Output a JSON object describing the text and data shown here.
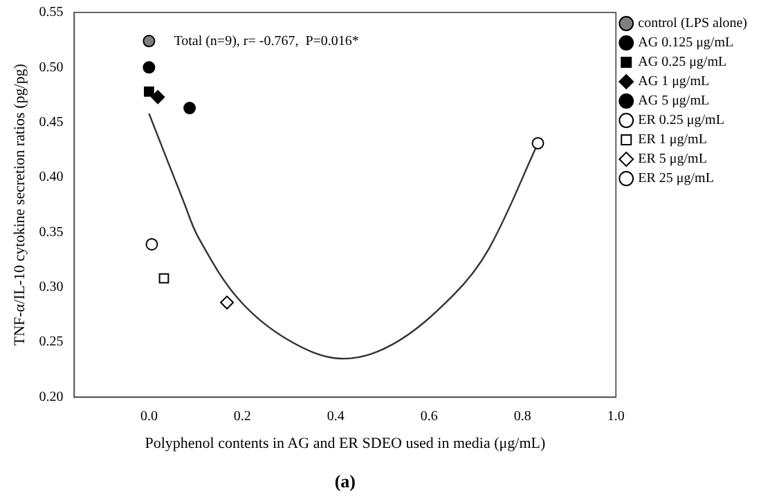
{
  "chart_data": {
    "type": "scatter",
    "xlabel": "Polyphenol contents in AG and ER SDEO used in media (μg/mL)",
    "ylabel": "TNF-α/IL-10 cytokine secretion ratios (pg/pg)",
    "annotations": [
      "Total (n=9), r= -0.767,  P=0.016*",
      "(a)"
    ],
    "xlim": [
      -0.16,
      1.0
    ],
    "xticks": [
      {
        "value": 0,
        "label": "0.0"
      },
      {
        "value": 0.2,
        "label": "0.2"
      },
      {
        "value": 0.4,
        "label": "0.4"
      },
      {
        "value": 0.6,
        "label": "0.6"
      },
      {
        "value": 0.8,
        "label": "0.8"
      },
      {
        "value": 1,
        "label": "1.0"
      }
    ],
    "ylim": [
      0.2,
      0.55
    ],
    "yticks": [
      {
        "value": 0.2,
        "label": "0.20"
      },
      {
        "value": 0.25,
        "label": "0.25"
      },
      {
        "value": 0.3,
        "label": "0.30"
      },
      {
        "value": 0.35,
        "label": "0.35"
      },
      {
        "value": 0.4,
        "label": "0.40"
      },
      {
        "value": 0.45,
        "label": "0.45"
      },
      {
        "value": 0.5,
        "label": "0.50"
      },
      {
        "value": 0.55,
        "label": "0.55"
      }
    ],
    "grid": false,
    "legend": "right",
    "series": [
      {
        "name": "control (LPS alone)",
        "color": "#808080",
        "marker": "circle",
        "x": [
          0.0
        ],
        "values": [
          0.524
        ]
      },
      {
        "name": "AG 0.125 μg/mL",
        "color": "#000000",
        "marker": "circle",
        "x": [
          0.0
        ],
        "values": [
          0.5
        ]
      },
      {
        "name": "AG 0.25 μg/mL",
        "color": "#000000",
        "marker": "square",
        "x": [
          0.0
        ],
        "values": [
          0.478
        ]
      },
      {
        "name": "AG 1 μg/mL",
        "color": "#000000",
        "marker": "diamond",
        "x": [
          0.019
        ],
        "values": [
          0.473
        ]
      },
      {
        "name": "AG 5 μg/mL",
        "color": "#000000",
        "marker": "circle",
        "x": [
          0.087
        ],
        "values": [
          0.463
        ]
      },
      {
        "name": "ER 0.25 μg/mL",
        "color": "#ffffff",
        "marker": "circle",
        "x": [
          0.006
        ],
        "values": [
          0.339
        ]
      },
      {
        "name": "ER 1 μg/mL",
        "color": "#ffffff",
        "marker": "square",
        "x": [
          0.032
        ],
        "values": [
          0.308
        ]
      },
      {
        "name": "ER 5 μg/mL",
        "color": "#ffffff",
        "marker": "diamond",
        "x": [
          0.167
        ],
        "values": [
          0.286
        ]
      },
      {
        "name": "ER 25 μg/mL",
        "color": "#ffffff",
        "marker": "circle",
        "x": [
          0.833
        ],
        "values": [
          0.431
        ]
      },
      {
        "type": "line",
        "color": "#333333",
        "marker": "none",
        "x": [
          0.0,
          0.074,
          0.106,
          0.192,
          0.298,
          0.41,
          0.522,
          0.65,
          0.728,
          0.833
        ],
        "values": [
          0.458,
          0.378,
          0.345,
          0.289,
          0.252,
          0.235,
          0.248,
          0.292,
          0.335,
          0.431
        ]
      }
    ]
  }
}
